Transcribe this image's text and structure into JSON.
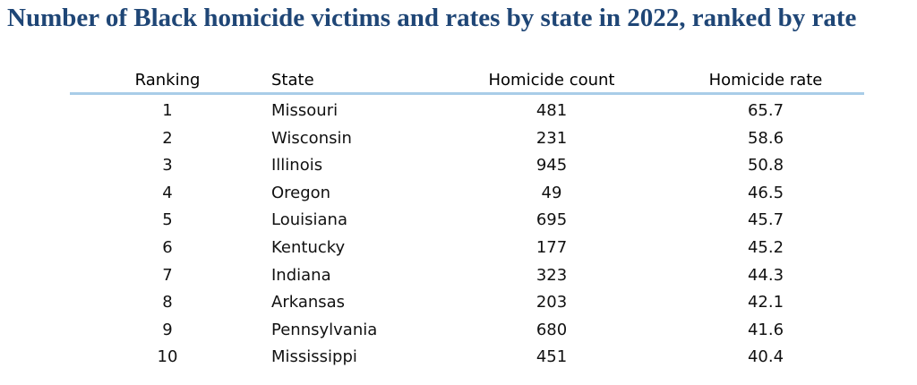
{
  "header": {
    "title": "Number of Black homicide victims and rates by state in 2022, ranked by rate"
  },
  "table": {
    "columns": [
      "Ranking",
      "State",
      "Homicide count",
      "Homicide rate"
    ],
    "rows": [
      [
        1,
        "Missouri",
        481,
        65.7
      ],
      [
        2,
        "Wisconsin",
        231,
        58.6
      ],
      [
        3,
        "Illinois",
        945,
        50.8
      ],
      [
        4,
        "Oregon",
        49,
        46.5
      ],
      [
        5,
        "Louisiana",
        695,
        45.7
      ],
      [
        6,
        "Kentucky",
        177,
        45.2
      ],
      [
        7,
        "Indiana",
        323,
        44.3
      ],
      [
        8,
        "Arkansas",
        203,
        42.1
      ],
      [
        9,
        "Pennsylvania",
        680,
        41.6
      ],
      [
        10,
        "Mississippi",
        451,
        40.4
      ]
    ]
  }
}
